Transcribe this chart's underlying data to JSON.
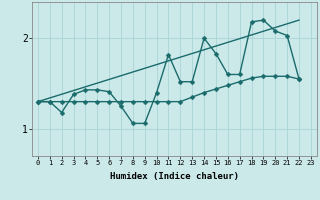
{
  "xlabel": "Humidex (Indice chaleur)",
  "x_values": [
    0,
    1,
    2,
    3,
    4,
    5,
    6,
    7,
    8,
    9,
    10,
    11,
    12,
    13,
    14,
    15,
    16,
    17,
    18,
    19,
    20,
    21,
    22,
    23
  ],
  "line1": [
    1.3,
    1.3,
    1.18,
    1.38,
    1.43,
    1.43,
    1.41,
    1.25,
    1.06,
    1.06,
    1.4,
    1.82,
    1.52,
    1.52,
    2.0,
    1.83,
    1.6,
    1.6,
    2.18,
    2.2,
    2.08,
    2.03,
    1.55,
    null
  ],
  "line2": [
    1.3,
    1.3,
    1.3,
    1.3,
    1.3,
    1.3,
    1.3,
    1.3,
    1.3,
    1.3,
    1.3,
    1.3,
    1.3,
    1.35,
    1.4,
    1.44,
    1.48,
    1.52,
    1.56,
    1.58,
    1.58,
    1.58,
    1.55,
    null
  ],
  "line3_x": [
    0,
    22
  ],
  "line3_y": [
    1.3,
    2.2
  ],
  "ylim": [
    0.7,
    2.4
  ],
  "xlim": [
    -0.5,
    23.5
  ],
  "yticks": [
    1,
    2
  ],
  "xticks": [
    0,
    1,
    2,
    3,
    4,
    5,
    6,
    7,
    8,
    9,
    10,
    11,
    12,
    13,
    14,
    15,
    16,
    17,
    18,
    19,
    20,
    21,
    22,
    23
  ],
  "bg_color": "#cce9ea",
  "grid_color": "#aad4d6",
  "line_color": "#1a6b6b",
  "marker_size": 2.5,
  "line_width": 1.0
}
